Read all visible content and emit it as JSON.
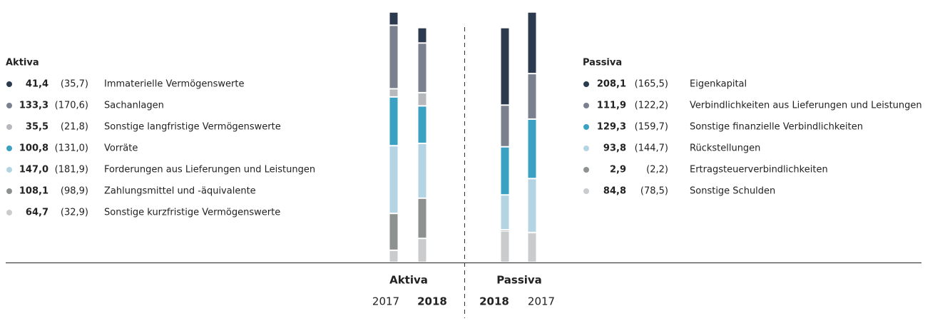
{
  "chart_data": [
    {
      "type": "bar",
      "stacked": true,
      "title": "Aktiva",
      "categories": [
        "2017",
        "2018"
      ],
      "ylim": [
        0,
        680
      ],
      "series": [
        {
          "name": "Immaterielle Vermögenswerte",
          "color": "#2c3a4f",
          "values": [
            35.7,
            41.4
          ],
          "value_labels": [
            "(35,7)",
            "41,4"
          ]
        },
        {
          "name": "Sachanlagen",
          "color": "#7a808e",
          "values": [
            170.6,
            133.3
          ],
          "value_labels": [
            "(170,6)",
            "133,3"
          ]
        },
        {
          "name": "Sonstige langfristige Vermögenswerte",
          "color": "#b6b8be",
          "values": [
            21.8,
            35.5
          ],
          "value_labels": [
            "(21,8)",
            "35,5"
          ]
        },
        {
          "name": "Vorräte",
          "color": "#3ba1c2",
          "values": [
            131.0,
            100.8
          ],
          "value_labels": [
            "(131,0)",
            "100,8"
          ]
        },
        {
          "name": "Forderungen aus Lieferungen und Leistungen",
          "color": "#b4d4e4",
          "values": [
            181.9,
            147.0
          ],
          "value_labels": [
            "(181,9)",
            "147,0"
          ]
        },
        {
          "name": "Zahlungsmittel und -äquivalente",
          "color": "#8d9291",
          "values": [
            98.9,
            108.1
          ],
          "value_labels": [
            "(98,9)",
            "108,1"
          ]
        },
        {
          "name": "Sonstige kurzfristige Vermögenswerte",
          "color": "#c9cbcd",
          "values": [
            32.9,
            64.7
          ],
          "value_labels": [
            "(32,9)",
            "64,7"
          ]
        }
      ]
    },
    {
      "type": "bar",
      "stacked": true,
      "title": "Passiva",
      "categories": [
        "2018",
        "2017"
      ],
      "ylim": [
        0,
        680
      ],
      "series": [
        {
          "name": "Eigenkapital",
          "color": "#2c3a4f",
          "values": [
            208.1,
            165.5
          ],
          "value_labels": [
            "208,1",
            "(165,5)"
          ]
        },
        {
          "name": "Verbindlichkeiten aus Lieferungen und Leistungen",
          "color": "#7a808e",
          "values": [
            111.9,
            122.2
          ],
          "value_labels": [
            "111,9",
            "(122,2)"
          ]
        },
        {
          "name": "Sonstige finanzielle Verbindlichkeiten",
          "color": "#3ba1c2",
          "values": [
            129.3,
            159.7
          ],
          "value_labels": [
            "129,3",
            "(159,7)"
          ]
        },
        {
          "name": "Rückstellungen",
          "color": "#b4d4e4",
          "values": [
            93.8,
            144.7
          ],
          "value_labels": [
            "93,8",
            "(144,7)"
          ]
        },
        {
          "name": "Ertragsteuerverbindlichkeiten",
          "color": "#8d9291",
          "values": [
            2.9,
            2.2
          ],
          "value_labels": [
            "2,9",
            "(2,2)"
          ]
        },
        {
          "name": "Sonstige Schulden",
          "color": "#c9cbcd",
          "values": [
            84.8,
            78.5
          ],
          "value_labels": [
            "84,8",
            "(78,5)"
          ]
        }
      ]
    }
  ]
}
